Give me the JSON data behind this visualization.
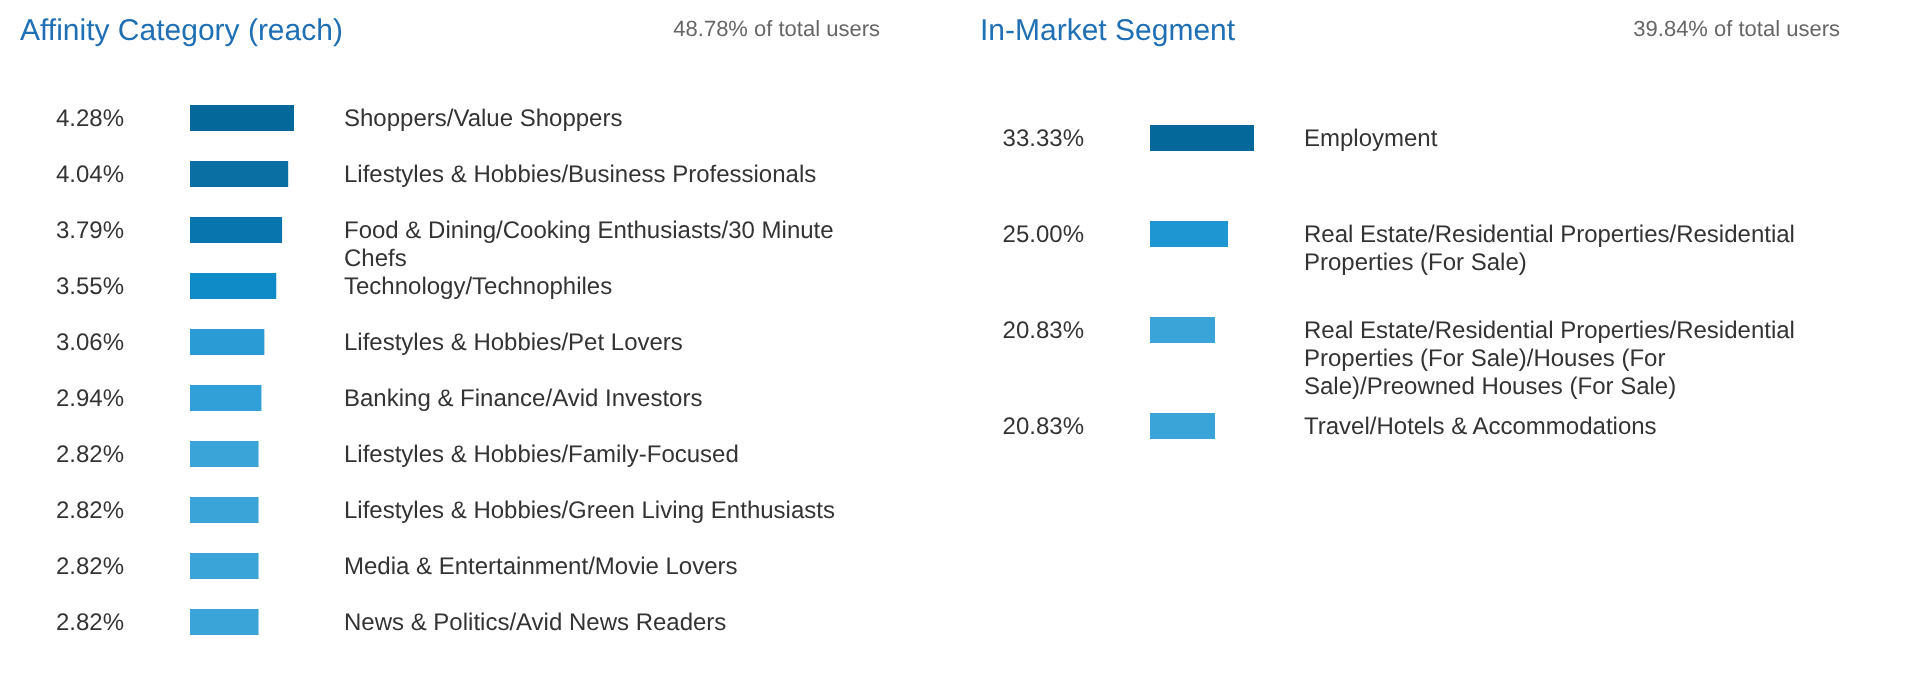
{
  "chart_data": [
    {
      "type": "bar",
      "orientation": "horizontal",
      "title": "Affinity Category (reach)",
      "subtitle": "48.78% of total users",
      "categories": [
        "Shoppers/Value Shoppers",
        "Lifestyles & Hobbies/Business Professionals",
        "Food & Dining/Cooking Enthusiasts/30 Minute Chefs",
        "Technology/Technophiles",
        "Lifestyles & Hobbies/Pet Lovers",
        "Banking & Finance/Avid Investors",
        "Lifestyles & Hobbies/Family-Focused",
        "Lifestyles & Hobbies/Green Living Enthusiasts",
        "Media & Entertainment/Movie Lovers",
        "News & Politics/Avid News Readers"
      ],
      "values": [
        4.28,
        4.04,
        3.79,
        3.55,
        3.06,
        2.94,
        2.82,
        2.82,
        2.82,
        2.82
      ],
      "value_labels": [
        "4.28%",
        "4.04%",
        "3.79%",
        "3.55%",
        "3.06%",
        "2.94%",
        "2.82%",
        "2.82%",
        "2.82%",
        "2.82%"
      ],
      "colors": [
        "#05689b",
        "#0a6fa3",
        "#0975ae",
        "#0f8cc8",
        "#2b9bd6",
        "#32a0d8",
        "#3aa3d8",
        "#3aa3d8",
        "#3aa3d8",
        "#3aa3d8"
      ]
    },
    {
      "type": "bar",
      "orientation": "horizontal",
      "title": "In-Market Segment",
      "subtitle": "39.84% of total users",
      "categories": [
        "Employment",
        "Real Estate/Residential Properties/Residential Properties (For Sale)",
        "Real Estate/Residential Properties/Residential Properties (For Sale)/Houses (For Sale)/Preowned Houses (For Sale)",
        "Travel/Hotels & Accommodations"
      ],
      "values": [
        33.33,
        25.0,
        20.83,
        20.83
      ],
      "value_labels": [
        "33.33%",
        "25.00%",
        "20.83%",
        "20.83%"
      ],
      "colors": [
        "#05689b",
        "#1e96d2",
        "#3aa3d8",
        "#3aa3d8"
      ]
    }
  ]
}
